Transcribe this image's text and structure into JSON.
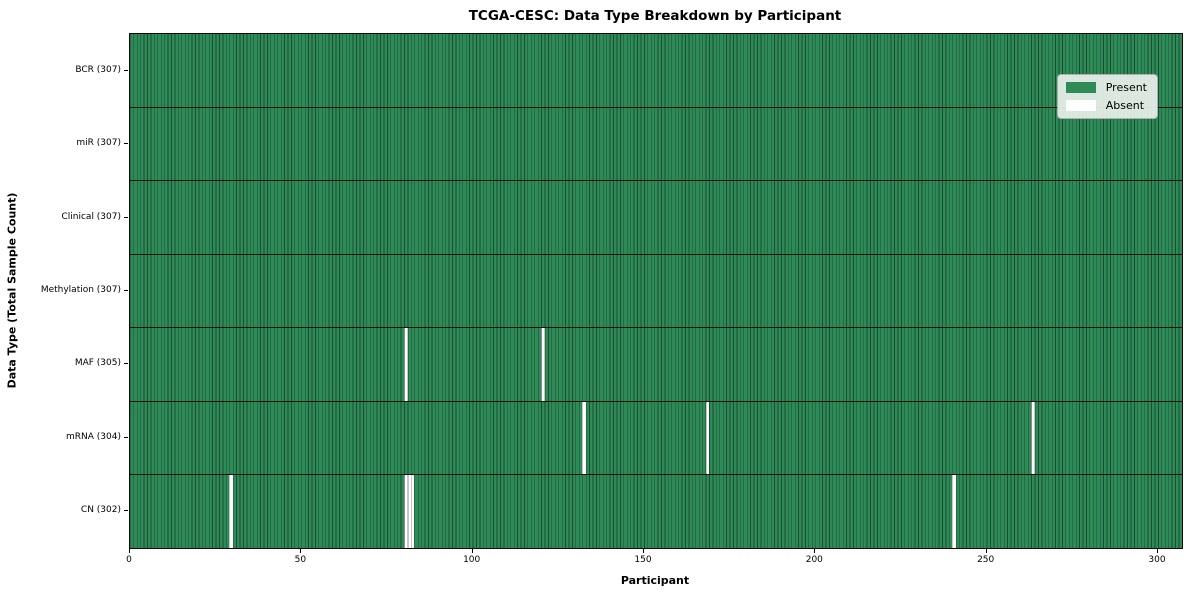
{
  "figure": {
    "title": "TCGA-CESC: Data Type Breakdown by Participant",
    "xlabel": "Participant",
    "ylabel": "Data Type (Total Sample Count)"
  },
  "legend": {
    "items": [
      {
        "label": "Present",
        "color": "#2e8b57"
      },
      {
        "label": "Absent",
        "color": "#ffffff"
      }
    ]
  },
  "chart_data": {
    "type": "heatmap",
    "title": "TCGA-CESC: Data Type Breakdown by Participant",
    "xlabel": "Participant",
    "ylabel": "Data Type (Total Sample Count)",
    "n_participants": 307,
    "x_range": [
      0,
      307
    ],
    "x_ticks": [
      0,
      50,
      100,
      150,
      200,
      250,
      300
    ],
    "rows": [
      {
        "label": "BCR (307)",
        "data_type": "BCR",
        "present_count": 307,
        "absent_participants": []
      },
      {
        "label": "miR (307)",
        "data_type": "miR",
        "present_count": 307,
        "absent_participants": []
      },
      {
        "label": "Clinical (307)",
        "data_type": "Clinical",
        "present_count": 307,
        "absent_participants": []
      },
      {
        "label": "Methylation (307)",
        "data_type": "Methylation",
        "present_count": 307,
        "absent_participants": []
      },
      {
        "label": "MAF (305)",
        "data_type": "MAF",
        "present_count": 305,
        "absent_participants": [
          80,
          120
        ]
      },
      {
        "label": "mRNA (304)",
        "data_type": "mRNA",
        "present_count": 304,
        "absent_participants": [
          132,
          168,
          263
        ]
      },
      {
        "label": "CN (302)",
        "data_type": "CN",
        "present_count": 302,
        "absent_participants": [
          29,
          80,
          81,
          82,
          240
        ]
      }
    ],
    "legend": [
      {
        "label": "Present",
        "color": "#2e8b57"
      },
      {
        "label": "Absent",
        "color": "#ffffff"
      }
    ],
    "colors": {
      "present": "#2e8b57",
      "absent": "#ffffff",
      "cell_edge": "rgba(0,0,0,0.45)",
      "row_divider": "rgba(0,0,0,0.85)",
      "spine": "#0a0a0a"
    },
    "grid": true,
    "legend_position": "upper right"
  }
}
